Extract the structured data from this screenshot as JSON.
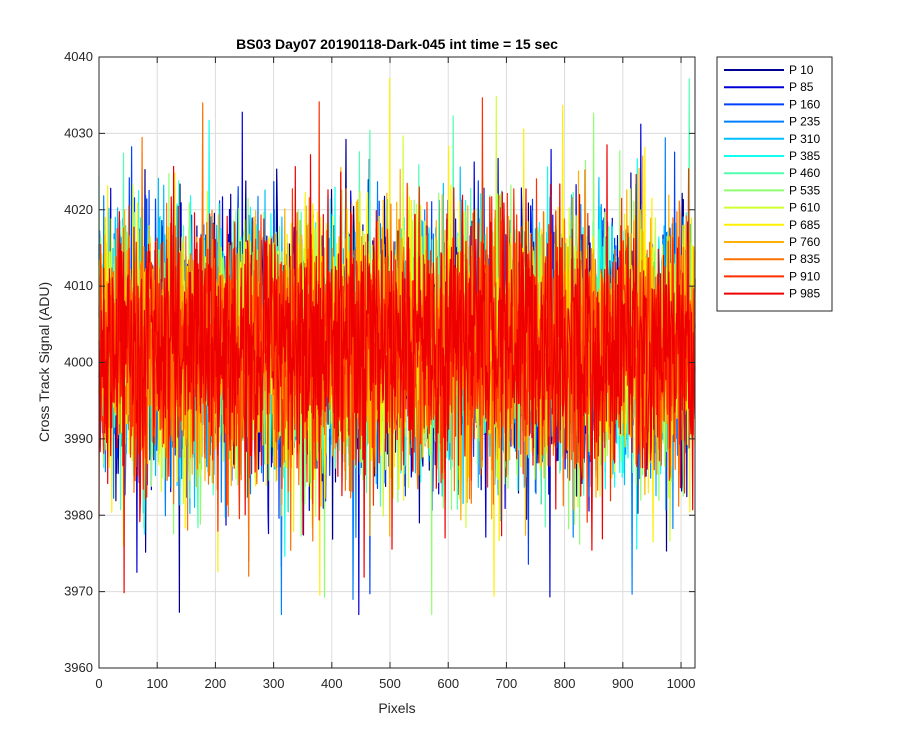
{
  "chart_data": {
    "type": "line",
    "title": "BS03 Day07 20190118-Dark-045 int time = 15 sec",
    "xlabel": "Pixels",
    "ylabel": "Cross Track Signal (ADU)",
    "xlim": [
      0,
      1024
    ],
    "ylim": [
      3960,
      4040
    ],
    "xticks": [
      0,
      100,
      200,
      300,
      400,
      500,
      600,
      700,
      800,
      900,
      1000
    ],
    "yticks": [
      3960,
      3970,
      3980,
      3990,
      4000,
      4010,
      4020,
      4030,
      4040
    ],
    "grid": true,
    "legend_position": "outside-top-right",
    "noise_model": {
      "points_per_series": 1024,
      "mean": 4002,
      "typical_range": [
        3984,
        4021
      ],
      "extremes_observed": [
        3967,
        4040
      ]
    },
    "series": [
      {
        "name": "P 10",
        "color": "#00008f"
      },
      {
        "name": "P 85",
        "color": "#0000d6"
      },
      {
        "name": "P 160",
        "color": "#0040ff"
      },
      {
        "name": "P 235",
        "color": "#0080ff"
      },
      {
        "name": "P 310",
        "color": "#00bfff"
      },
      {
        "name": "P 385",
        "color": "#10ffef"
      },
      {
        "name": "P 460",
        "color": "#50ffaf"
      },
      {
        "name": "P 535",
        "color": "#8fff70"
      },
      {
        "name": "P 610",
        "color": "#cfff30"
      },
      {
        "name": "P 685",
        "color": "#ffef00"
      },
      {
        "name": "P 760",
        "color": "#ffb000"
      },
      {
        "name": "P 835",
        "color": "#ff7000"
      },
      {
        "name": "P 910",
        "color": "#ff3000"
      },
      {
        "name": "P 985",
        "color": "#ef0000"
      }
    ]
  }
}
